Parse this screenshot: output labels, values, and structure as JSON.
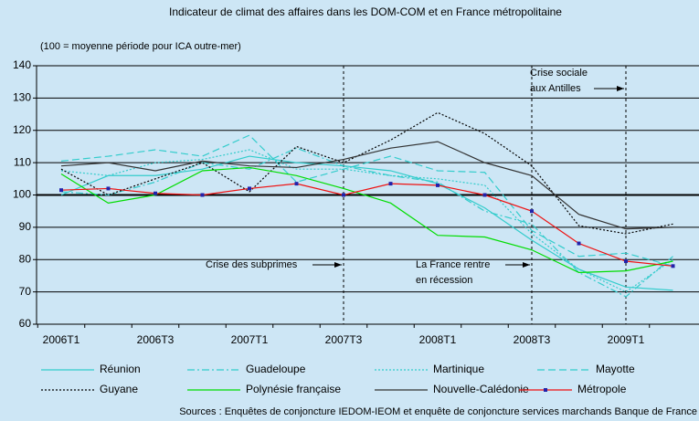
{
  "chart_data": {
    "type": "line",
    "title": "Indicateur de climat des affaires dans les DOM-COM et en France métropolitaine",
    "subtitle": "(100 = moyenne période pour ICA outre-mer)",
    "categories": [
      "2006T1",
      null,
      "2006T3",
      null,
      "2007T1",
      null,
      "2007T3",
      null,
      "2008T1",
      null,
      "2008T3",
      null,
      "2009T1",
      null
    ],
    "ylim": [
      60,
      140
    ],
    "yticks": [
      60,
      70,
      80,
      90,
      100,
      110,
      120,
      130,
      140
    ],
    "grid": true,
    "series": [
      {
        "name": "Réunion",
        "color": "#33cccc",
        "style": "solid",
        "values": [
          100,
          106,
          106,
          108,
          112,
          110,
          109,
          107.5,
          103.5,
          96,
          86,
          77,
          71.5,
          70.5
        ]
      },
      {
        "name": "Guadeloupe",
        "color": "#33cccc",
        "style": "dash-dot",
        "values": [
          101,
          100,
          104,
          110,
          108,
          114.5,
          109,
          106,
          104,
          95,
          91,
          76,
          68.5,
          81
        ]
      },
      {
        "name": "Martinique",
        "color": "#33cccc",
        "style": "dotted",
        "values": [
          107.5,
          106,
          110,
          111,
          114,
          108,
          108,
          106,
          105,
          103,
          88,
          77,
          70,
          80
        ]
      },
      {
        "name": "Mayotte",
        "color": "#33cccc",
        "style": "dashed",
        "values": [
          110.5,
          112,
          114,
          112,
          118.5,
          104,
          108,
          112,
          107.5,
          107,
          89,
          81,
          82,
          78
        ]
      },
      {
        "name": "Guyane",
        "color": "#000000",
        "style": "dotted",
        "values": [
          108,
          100,
          105,
          110,
          101,
          115,
          110,
          117,
          125.5,
          119,
          109,
          90.5,
          88,
          91
        ]
      },
      {
        "name": "Polynésie française",
        "color": "#00dd00",
        "style": "solid",
        "values": [
          106.5,
          97.5,
          100,
          107.5,
          108.5,
          106,
          102,
          97.5,
          87.5,
          87,
          83,
          76,
          76.5,
          79.5
        ]
      },
      {
        "name": "Nouvelle-Calédonie",
        "color": "#333333",
        "style": "solid",
        "values": [
          109,
          110,
          107.5,
          110.5,
          109,
          108.5,
          111,
          114.5,
          116.5,
          110,
          106,
          94,
          89.5,
          90
        ]
      },
      {
        "name": "Métropole",
        "color": "#ee1111",
        "style": "solid",
        "marker": true,
        "values": [
          101.5,
          102,
          100.5,
          100,
          102,
          103.5,
          100,
          103.5,
          103,
          100,
          95,
          85,
          79.5,
          78
        ]
      }
    ],
    "annotations": [
      {
        "lines": [
          "Crise des subprimes"
        ]
      },
      {
        "lines": [
          "La France rentre",
          "en récession"
        ]
      },
      {
        "lines": [
          "Crise sociale",
          "aux Antilles"
        ]
      }
    ],
    "source": "Sources : Enquêtes de conjoncture IEDOM-IEOM et enquête de conjoncture services marchands Banque de France"
  }
}
